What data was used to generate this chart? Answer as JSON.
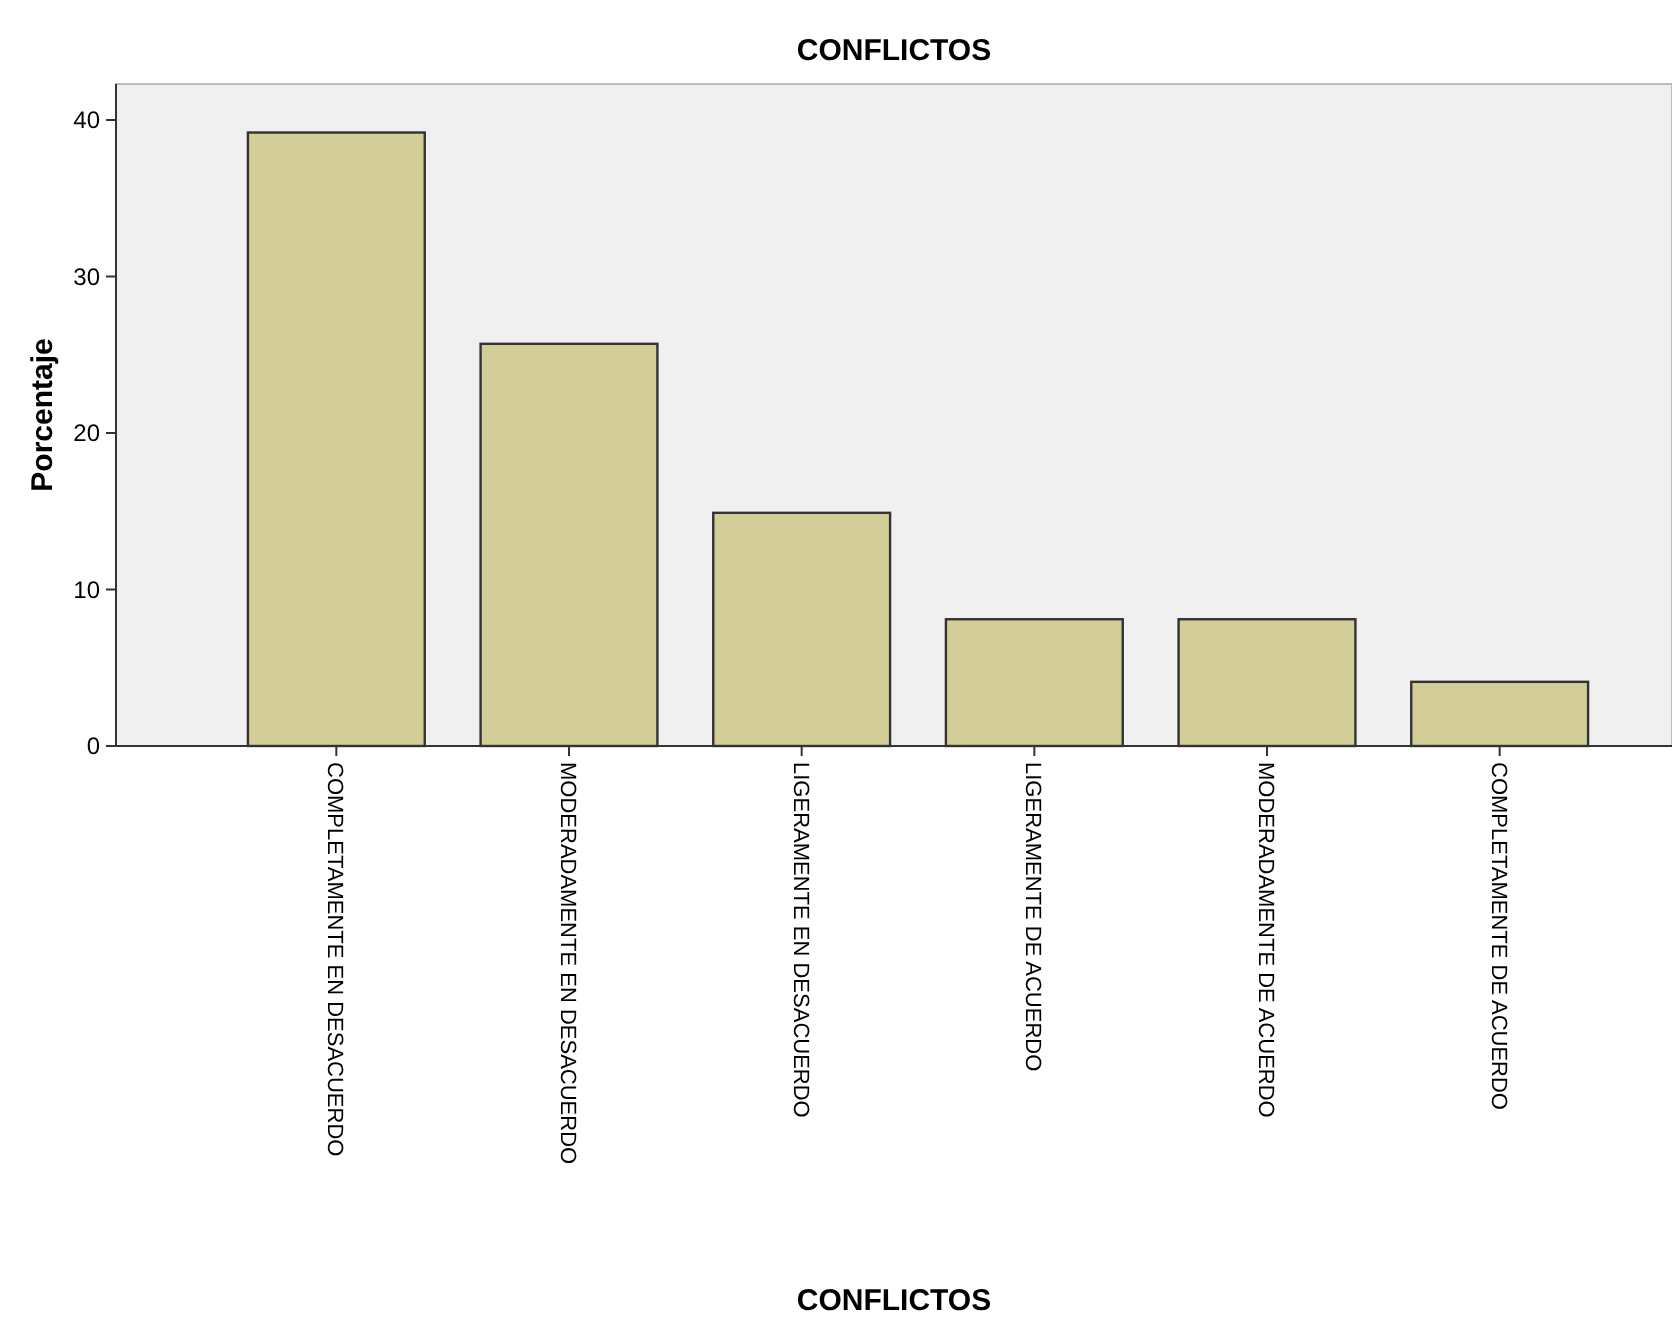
{
  "chart_data": {
    "type": "bar",
    "title": "CONFLICTOS",
    "xlabel": "CONFLICTOS",
    "ylabel": "Porcentaje",
    "categories": [
      "COMPLETAMENTE EN DESACUERDO",
      "MODERADAMENTE EN DESACUERDO",
      "LIGERAMENTE EN DESACUERDO",
      "LIGERAMENTE DE ACUERDO",
      "MODERADAMENTE DE ACUERDO",
      "COMPLETAMENTE DE ACUERDO"
    ],
    "values": [
      39.2,
      25.7,
      14.9,
      8.1,
      8.1,
      4.1
    ],
    "color": "#d3ce97",
    "ylim": [
      0,
      42.3
    ],
    "yticks": [
      0,
      10,
      20,
      30,
      40
    ],
    "grid": false
  }
}
